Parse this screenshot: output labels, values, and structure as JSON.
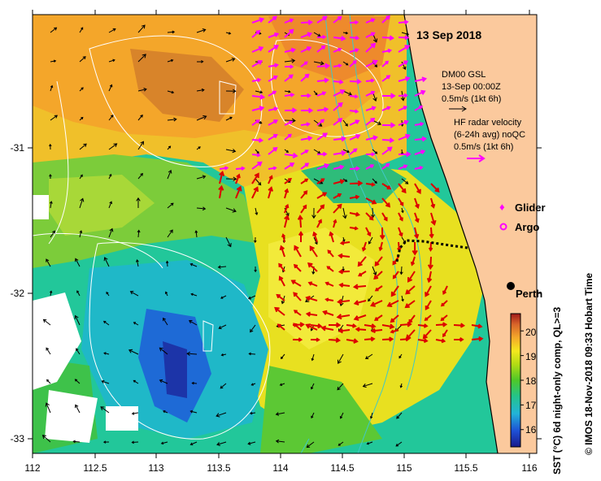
{
  "map": {
    "date_title": "13 Sep 2018",
    "gsl": {
      "line1": "DM00 GSL",
      "line2": "13-Sep 00:00Z",
      "line3": "0.5m/s (1kt 6h)"
    },
    "radar": {
      "line1": "HF radar velocity",
      "line2": "(6-24h avg) noQC",
      "line3": "0.5m/s (1kt 6h)"
    },
    "legend": {
      "glider": "Glider",
      "argo": "Argo"
    },
    "city": "Perth",
    "x_ticks": [
      "112",
      "112.5",
      "113",
      "113.5",
      "114",
      "114.5",
      "115",
      "115.5",
      "116"
    ],
    "y_ticks": [
      "-31",
      "-32",
      "-33"
    ],
    "colorbar": {
      "title": "SST (°C) 6d night-only comp, QL>=3",
      "ticks": [
        "16",
        "17",
        "18",
        "19",
        "20"
      ],
      "range": [
        15.3,
        20.7
      ]
    },
    "credit": "© IMOS 18-Nov-2018 09:33 Hobart Time",
    "colors": {
      "land": "#fbc99d",
      "gsl_arrow": "#000000",
      "radar_arrow_north": "#ff00ff",
      "radar_arrow_south": "#dd0000",
      "contour": "#ffffff",
      "bathy": "#40c8c8"
    }
  }
}
